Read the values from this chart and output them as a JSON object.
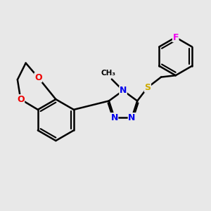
{
  "background_color": "#e8e8e8",
  "bond_color": "#000000",
  "bond_width": 1.8,
  "atom_colors": {
    "N": "#0000ee",
    "O": "#ee0000",
    "S": "#ccaa00",
    "F": "#ee00ee",
    "C": "#000000"
  },
  "font_size_atom": 9
}
